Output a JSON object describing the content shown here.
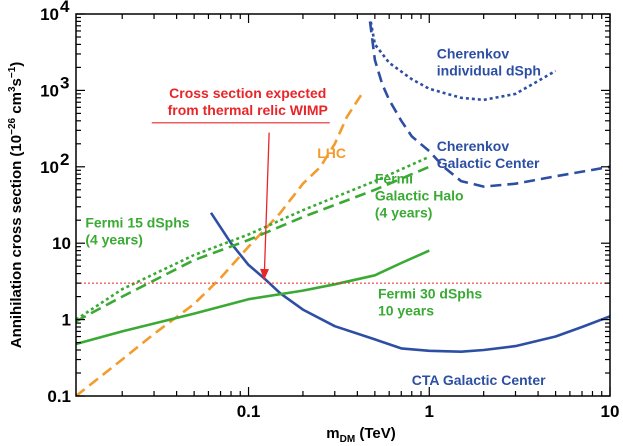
{
  "chart_data": {
    "type": "line",
    "xlabel": {
      "main": "m",
      "sub": "DM",
      "rest": " (TeV)"
    },
    "ylabel": {
      "pre": "Annihilation cross section (10",
      "sup1": "−26",
      "mid": " cm",
      "sup2": "3",
      "mid2": "s",
      "sup3": "−1",
      "post": ")"
    },
    "x_log": true,
    "y_log": true,
    "xlim": [
      0.0111,
      10
    ],
    "ylim": [
      0.1,
      10000
    ],
    "x_ticks": [
      {
        "value": 0.1,
        "label": "0.1"
      },
      {
        "value": 1,
        "label": "1"
      },
      {
        "value": 10,
        "label": "10"
      }
    ],
    "y_ticks": [
      {
        "value": 0.1,
        "label": "0.1"
      },
      {
        "value": 1,
        "label": "1"
      },
      {
        "value": 10,
        "label": "10"
      },
      {
        "value": 100,
        "label": "10",
        "exp": "2"
      },
      {
        "value": 1000,
        "label": "10",
        "exp": "3"
      },
      {
        "value": 10000,
        "label": "10",
        "exp": "4"
      }
    ],
    "series": [
      {
        "color": "#2d4fa3",
        "dash": "dot",
        "points": [
          [
            0.475,
            7900
          ],
          [
            0.5,
            4000
          ],
          [
            0.6,
            2300
          ],
          [
            0.8,
            1400
          ],
          [
            1.0,
            1050
          ],
          [
            1.5,
            800
          ],
          [
            2.0,
            750
          ],
          [
            3.0,
            900
          ],
          [
            5.0,
            1800
          ]
        ]
      },
      {
        "color": "#2d4fa3",
        "dash": "dash",
        "points": [
          [
            0.47,
            8000
          ],
          [
            0.5,
            2500
          ],
          [
            0.55,
            1200
          ],
          [
            0.6,
            750
          ],
          [
            0.7,
            400
          ],
          [
            0.8,
            250
          ],
          [
            1.0,
            160
          ],
          [
            1.2,
            100
          ],
          [
            1.5,
            65
          ],
          [
            2.0,
            55
          ],
          [
            3.0,
            60
          ],
          [
            5.0,
            75
          ],
          [
            10.0,
            100
          ]
        ]
      },
      {
        "color": "#2d4fa3",
        "dash": "solid",
        "points": [
          [
            0.062,
            25
          ],
          [
            0.08,
            10
          ],
          [
            0.1,
            5.2
          ],
          [
            0.12,
            3.6
          ],
          [
            0.15,
            2.2
          ],
          [
            0.2,
            1.35
          ],
          [
            0.3,
            0.82
          ],
          [
            0.5,
            0.55
          ],
          [
            0.7,
            0.42
          ],
          [
            1.0,
            0.39
          ],
          [
            1.5,
            0.38
          ],
          [
            2.0,
            0.4
          ],
          [
            3.0,
            0.45
          ],
          [
            5.0,
            0.6
          ],
          [
            7.0,
            0.8
          ],
          [
            10.0,
            1.1
          ]
        ]
      },
      {
        "color": "#f39c2b",
        "dash": "dash",
        "points": [
          [
            0.0111,
            0.1
          ],
          [
            0.02,
            0.3
          ],
          [
            0.03,
            0.65
          ],
          [
            0.05,
            1.6
          ],
          [
            0.07,
            3.5
          ],
          [
            0.1,
            9
          ],
          [
            0.15,
            25
          ],
          [
            0.2,
            60
          ],
          [
            0.25,
            100
          ],
          [
            0.3,
            200
          ],
          [
            0.35,
            450
          ],
          [
            0.43,
            950
          ]
        ]
      },
      {
        "color": "#3aaa35",
        "dash": "dot",
        "points": [
          [
            0.0111,
            1
          ],
          [
            0.02,
            2.5
          ],
          [
            0.05,
            7
          ],
          [
            0.1,
            13
          ],
          [
            0.2,
            27
          ],
          [
            0.5,
            65
          ],
          [
            1.0,
            135
          ]
        ]
      },
      {
        "color": "#3aaa35",
        "dash": "dash",
        "points": [
          [
            0.0111,
            0.95
          ],
          [
            0.02,
            2
          ],
          [
            0.05,
            6
          ],
          [
            0.1,
            11
          ],
          [
            0.2,
            22
          ],
          [
            0.5,
            50
          ],
          [
            1.0,
            100
          ]
        ]
      },
      {
        "color": "#3aaa35",
        "dash": "solid",
        "points": [
          [
            0.0111,
            0.48
          ],
          [
            0.02,
            0.7
          ],
          [
            0.05,
            1.2
          ],
          [
            0.1,
            1.85
          ],
          [
            0.2,
            2.4
          ],
          [
            0.3,
            2.9
          ],
          [
            0.5,
            3.8
          ],
          [
            0.7,
            5.5
          ],
          [
            1.0,
            8
          ]
        ]
      }
    ],
    "reference_line": {
      "y": 3,
      "color": "#e8262a"
    },
    "annotations": [
      {
        "lines": [
          "Cherenkov",
          "individual dSph"
        ],
        "color": "#2d4fa3",
        "x": 1.1,
        "y": 2600
      },
      {
        "lines": [
          "Cherenkov",
          "Galactic Center"
        ],
        "color": "#2d4fa3",
        "x": 1.1,
        "y": 160
      },
      {
        "lines": [
          "Cross section expected",
          "from thermal relic WIMP"
        ],
        "color": "#e8262a",
        "x": 0.099,
        "y": 800,
        "align": "middle"
      },
      {
        "lines": [
          "LHC"
        ],
        "color": "#f39c2b",
        "x": 0.24,
        "y": 130
      },
      {
        "lines": [
          "Fermi",
          "Galactic Halo",
          "(4 years)"
        ],
        "color": "#3aaa35",
        "x": 0.5,
        "y": 60
      },
      {
        "lines": [
          "Fermi 15 dSphs",
          "(4 years)"
        ],
        "color": "#3aaa35",
        "x": 0.0125,
        "y": 16
      },
      {
        "lines": [
          "Fermi 30 dSphs",
          "10 years"
        ],
        "color": "#3aaa35",
        "x": 0.52,
        "y": 1.9
      },
      {
        "lines": [
          "CTA Galactic Center"
        ],
        "color": "#2d4fa3",
        "x": 0.8,
        "y": 0.14
      }
    ],
    "arrow": {
      "color": "#e8262a",
      "from": [
        0.13,
        280
      ],
      "to": [
        0.122,
        3.3
      ]
    },
    "grid": false,
    "legend": "none"
  }
}
